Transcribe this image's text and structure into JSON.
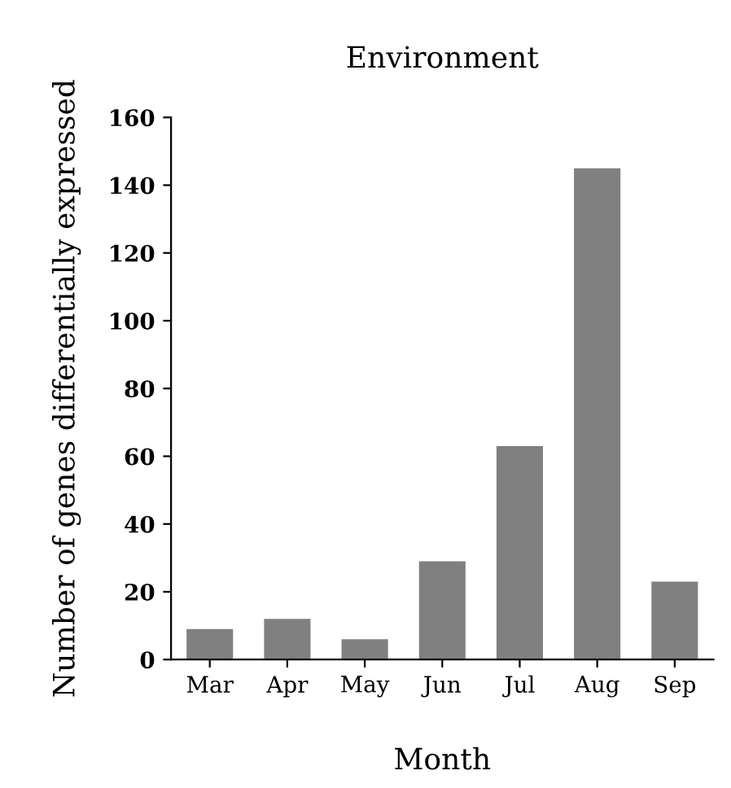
{
  "chart_data": {
    "type": "bar",
    "title": "Environment",
    "xlabel": "Month",
    "ylabel": "Number of genes differentially expressed",
    "categories": [
      "Mar",
      "Apr",
      "May",
      "Jun",
      "Jul",
      "Aug",
      "Sep"
    ],
    "values": [
      9,
      12,
      6,
      29,
      63,
      145,
      23
    ],
    "color": "#808080",
    "ylim": [
      0,
      160
    ],
    "yticks": [
      0,
      20,
      40,
      60,
      80,
      100,
      120,
      140,
      160
    ],
    "grid": false
  }
}
